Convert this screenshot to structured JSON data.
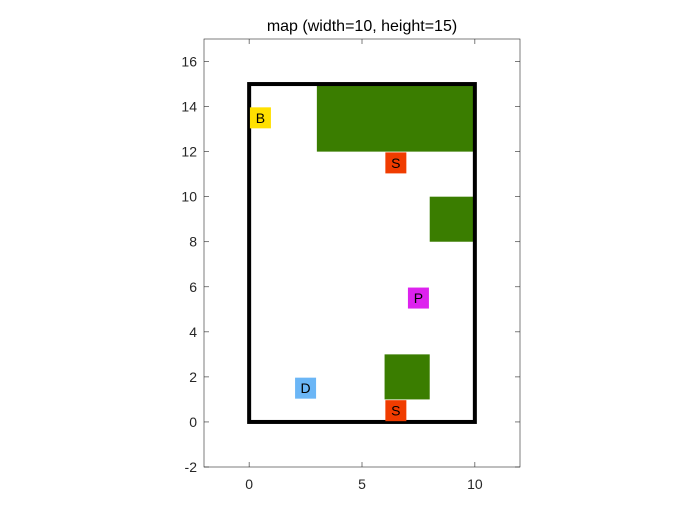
{
  "chart_data": {
    "type": "map",
    "title": "map (width=10, height=15)",
    "xlim": [
      -2,
      12
    ],
    "ylim": [
      -2,
      17
    ],
    "xticks": [
      0,
      5,
      10
    ],
    "yticks": [
      -2,
      0,
      2,
      4,
      6,
      8,
      10,
      12,
      14,
      16
    ],
    "grid": false,
    "boundary": {
      "x": [
        0,
        10
      ],
      "y": [
        0,
        15
      ],
      "color": "#000000"
    },
    "obstacles": [
      {
        "x": [
          3,
          10
        ],
        "y": [
          12,
          15
        ],
        "color": "#3a7d00"
      },
      {
        "x": [
          8,
          10
        ],
        "y": [
          8,
          10
        ],
        "color": "#3a7d00"
      },
      {
        "x": [
          6,
          8
        ],
        "y": [
          1,
          3
        ],
        "color": "#3a7d00"
      }
    ],
    "markers": [
      {
        "label": "B",
        "x": 0.5,
        "y": 13.5,
        "color": "#ffe000"
      },
      {
        "label": "S",
        "x": 6.5,
        "y": 11.5,
        "color": "#f03c00"
      },
      {
        "label": "P",
        "x": 7.5,
        "y": 5.5,
        "color": "#dd22ee"
      },
      {
        "label": "D",
        "x": 2.5,
        "y": 1.5,
        "color": "#6bb6f6"
      },
      {
        "label": "S",
        "x": 6.5,
        "y": 0.5,
        "color": "#f03c00"
      }
    ]
  }
}
